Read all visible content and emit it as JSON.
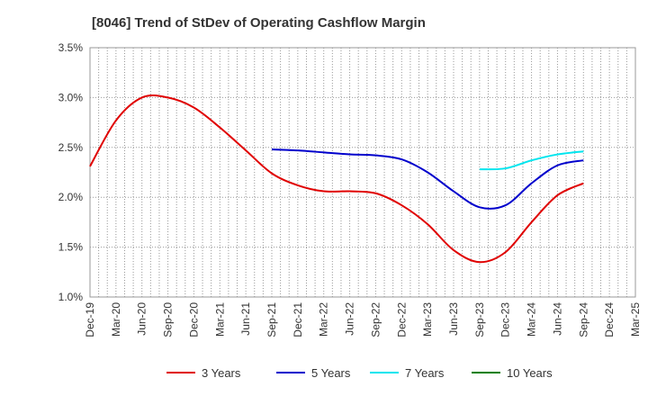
{
  "chart_data": {
    "type": "line",
    "title": "[8046]  Trend of StDev of Operating Cashflow Margin",
    "xlabel": "",
    "ylabel": "",
    "y_ticks": [
      "1.0%",
      "1.5%",
      "2.0%",
      "2.5%",
      "3.0%",
      "3.5%"
    ],
    "ylim": [
      1.0,
      3.5
    ],
    "x_ticks": [
      "Dec-19",
      "Mar-20",
      "Jun-20",
      "Sep-20",
      "Dec-20",
      "Mar-21",
      "Jun-21",
      "Sep-21",
      "Dec-21",
      "Mar-22",
      "Jun-22",
      "Sep-22",
      "Dec-22",
      "Mar-23",
      "Jun-23",
      "Sep-23",
      "Dec-23",
      "Mar-24",
      "Jun-24",
      "Sep-24",
      "Dec-24",
      "Mar-25"
    ],
    "grid": "vertical dotted per month, horizontal dotted",
    "legend_position": "bottom",
    "series": [
      {
        "name": "3 Years",
        "color": "#e00000",
        "points": [
          [
            "Dec-19",
            2.31
          ],
          [
            "Mar-20",
            2.77
          ],
          [
            "Jun-20",
            3.0
          ],
          [
            "Sep-20",
            3.0
          ],
          [
            "Dec-20",
            2.9
          ],
          [
            "Mar-21",
            2.7
          ],
          [
            "Jun-21",
            2.47
          ],
          [
            "Sep-21",
            2.24
          ],
          [
            "Dec-21",
            2.12
          ],
          [
            "Mar-22",
            2.06
          ],
          [
            "Jun-22",
            2.06
          ],
          [
            "Sep-22",
            2.04
          ],
          [
            "Dec-22",
            1.92
          ],
          [
            "Mar-23",
            1.73
          ],
          [
            "Jun-23",
            1.47
          ],
          [
            "Sep-23",
            1.35
          ],
          [
            "Dec-23",
            1.45
          ],
          [
            "Mar-24",
            1.75
          ],
          [
            "Jun-24",
            2.02
          ],
          [
            "Sep-24",
            2.14
          ]
        ]
      },
      {
        "name": "5 Years",
        "color": "#0000cc",
        "points": [
          [
            "Sep-21",
            2.48
          ],
          [
            "Dec-21",
            2.47
          ],
          [
            "Mar-22",
            2.45
          ],
          [
            "Jun-22",
            2.43
          ],
          [
            "Sep-22",
            2.42
          ],
          [
            "Dec-22",
            2.38
          ],
          [
            "Mar-23",
            2.25
          ],
          [
            "Jun-23",
            2.06
          ],
          [
            "Sep-23",
            1.9
          ],
          [
            "Dec-23",
            1.92
          ],
          [
            "Mar-24",
            2.14
          ],
          [
            "Jun-24",
            2.32
          ],
          [
            "Sep-24",
            2.37
          ]
        ]
      },
      {
        "name": "7 Years",
        "color": "#00e5ee",
        "points": [
          [
            "Sep-23",
            2.28
          ],
          [
            "Dec-23",
            2.29
          ],
          [
            "Mar-24",
            2.37
          ],
          [
            "Jun-24",
            2.43
          ],
          [
            "Sep-24",
            2.46
          ]
        ]
      },
      {
        "name": "10 Years",
        "color": "#008000",
        "points": []
      }
    ]
  }
}
